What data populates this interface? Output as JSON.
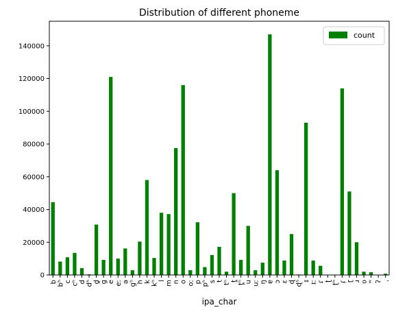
{
  "chart_data": {
    "type": "bar",
    "title": "Distribution of different phoneme",
    "xlabel": "ipa_char",
    "ylabel": "",
    "ylim": [
      0,
      155000
    ],
    "yticks": [
      0,
      20000,
      40000,
      60000,
      80000,
      100000,
      120000,
      140000
    ],
    "ytick_labels": [
      "0",
      "20000",
      "40000",
      "60000",
      "80000",
      "100000",
      "120000",
      "140000"
    ],
    "grid": false,
    "legend_position": "top-right",
    "bar_color": "#008000",
    "categories": [
      "b",
      "bʱ",
      "c",
      "cʰ",
      "d",
      "dʱ",
      "d̪",
      "ɡ",
      "e",
      "eː",
      "ə",
      "ɡʱ",
      "h",
      "k",
      "kʰ",
      "l",
      "m",
      "n",
      "o",
      "oː",
      "p",
      "pʰ",
      "s",
      "t",
      "tʰ",
      "t̪",
      "t̪ʰ",
      "u",
      "uː",
      "ŋ",
      "ɐ",
      "ɔ",
      "ɛ",
      "ɖ",
      "ɖʱ",
      "ɪ",
      "ɪː",
      "ɾ",
      "ʈ",
      "ʈʰ",
      "ɾ̩",
      "ɽ",
      "ɹ",
      "ʋ",
      "ʷ",
      "ʔ",
      "ˌ"
    ],
    "series": [
      {
        "name": "count",
        "values": [
          44500,
          8200,
          10800,
          13500,
          4200,
          400,
          30800,
          9200,
          121000,
          10000,
          16200,
          2900,
          20400,
          58000,
          10400,
          38000,
          37200,
          77500,
          116000,
          2900,
          32200,
          4800,
          12200,
          17200,
          2000,
          50000,
          9200,
          30000,
          2900,
          7500,
          147000,
          64000,
          8800,
          25000,
          300,
          93000,
          8800,
          5600,
          0,
          0,
          114000,
          51000,
          20000,
          2000,
          1700,
          0,
          800
        ]
      }
    ]
  }
}
